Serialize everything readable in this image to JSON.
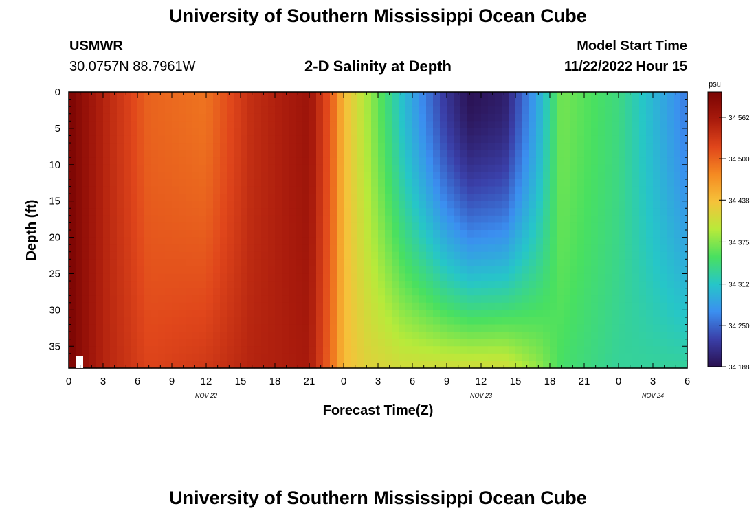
{
  "page": {
    "title_top": "University of Southern Mississippi Ocean Cube",
    "title_bottom": "University of Southern Mississippi Ocean Cube",
    "station_name": "USMWR",
    "station_coords": "30.0757N  88.7961W",
    "plot_title": "2-D Salinity at Depth",
    "model_start_label": "Model Start Time",
    "model_start_value": "11/22/2022 Hour 15"
  },
  "chart_data": {
    "type": "heatmap",
    "title": "2-D Salinity at Depth",
    "xlabel": "Forecast Time(Z)",
    "ylabel": "Depth (ft)",
    "x_range_hours": [
      0,
      54
    ],
    "y_range_ft": [
      0,
      38
    ],
    "y_inverted": true,
    "x_ticks": [
      "0",
      "3",
      "6",
      "9",
      "12",
      "15",
      "18",
      "21",
      "0",
      "3",
      "6",
      "9",
      "12",
      "15",
      "18",
      "21",
      "0",
      "3",
      "6"
    ],
    "x_tick_hours": [
      0,
      3,
      6,
      9,
      12,
      15,
      18,
      21,
      24,
      27,
      30,
      33,
      36,
      39,
      42,
      45,
      48,
      51,
      54
    ],
    "date_labels": [
      {
        "text": "NOV 22",
        "hour": 12
      },
      {
        "text": "NOV 23",
        "hour": 36
      },
      {
        "text": "NOV 24",
        "hour": 51
      }
    ],
    "y_ticks": [
      0,
      5,
      10,
      15,
      20,
      25,
      30,
      35
    ],
    "colorbar": {
      "unit": "psu",
      "min": 34.188,
      "max": 34.6,
      "ticks": [
        34.562,
        34.5,
        34.438,
        34.375,
        34.312,
        34.25,
        34.188
      ],
      "colors": [
        "#2a1050",
        "#3a3fa8",
        "#3b8ff0",
        "#26c6c8",
        "#49e060",
        "#b8ea3a",
        "#f5c23a",
        "#f58a22",
        "#e0461b",
        "#a81a0c",
        "#7a0403"
      ]
    },
    "time_profile": [
      {
        "hour": 0,
        "surface": 34.6,
        "bottom": 34.6
      },
      {
        "hour": 3,
        "surface": 34.55,
        "bottom": 34.55
      },
      {
        "hour": 7,
        "surface": 34.5,
        "bottom": 34.52
      },
      {
        "hour": 12,
        "surface": 34.49,
        "bottom": 34.53
      },
      {
        "hour": 16,
        "surface": 34.54,
        "bottom": 34.55
      },
      {
        "hour": 21,
        "surface": 34.57,
        "bottom": 34.56
      },
      {
        "hour": 23,
        "surface": 34.5,
        "bottom": 34.49
      },
      {
        "hour": 24,
        "surface": 34.44,
        "bottom": 34.44
      },
      {
        "hour": 26,
        "surface": 34.39,
        "bottom": 34.42
      },
      {
        "hour": 29,
        "surface": 34.31,
        "bottom": 34.41
      },
      {
        "hour": 33,
        "surface": 34.22,
        "bottom": 34.41
      },
      {
        "hour": 35,
        "surface": 34.19,
        "bottom": 34.41
      },
      {
        "hour": 38,
        "surface": 34.2,
        "bottom": 34.41
      },
      {
        "hour": 41,
        "surface": 34.29,
        "bottom": 34.38
      },
      {
        "hour": 43,
        "surface": 34.37,
        "bottom": 34.35
      },
      {
        "hour": 48,
        "surface": 34.34,
        "bottom": 34.33
      },
      {
        "hour": 54,
        "surface": 34.26,
        "bottom": 34.33
      }
    ]
  }
}
